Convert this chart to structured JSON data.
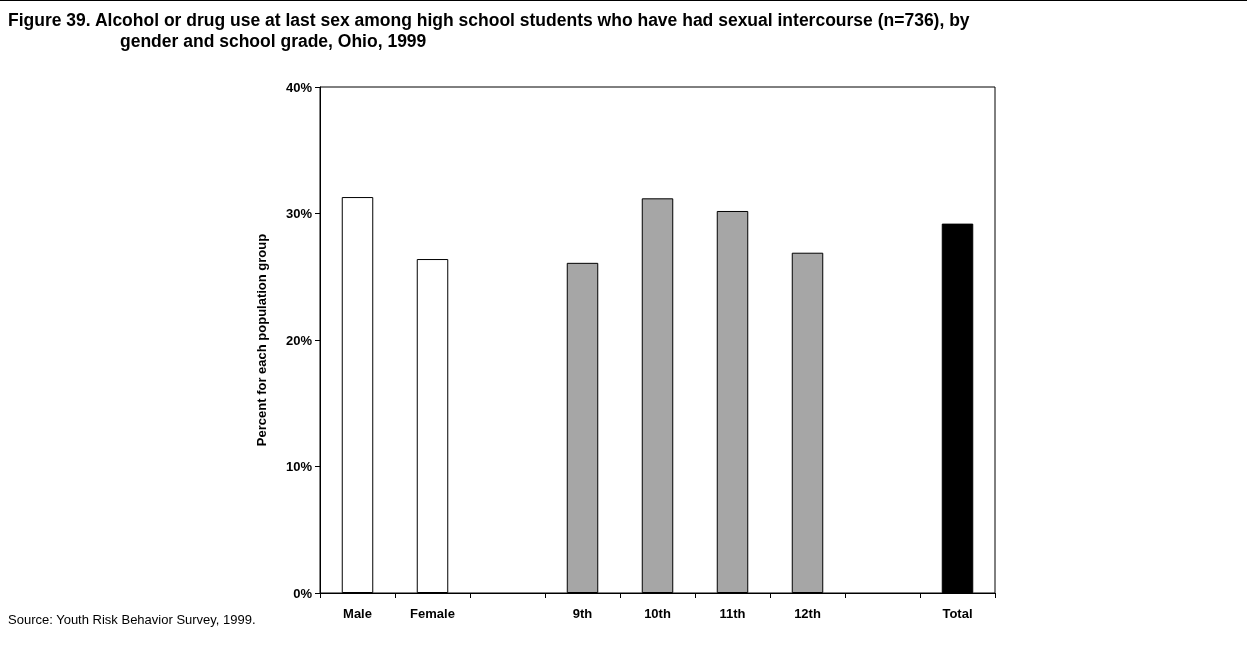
{
  "chart_data": {
    "type": "bar",
    "title": "Figure 39.  Alcohol or drug use at last sex among high school students who have had sexual intercourse (n=736), by gender and school grade, Ohio, 1999",
    "ylabel": "Percent for each population group",
    "categories": [
      "Male",
      "Female",
      null,
      "9th",
      "10th",
      "11th",
      "12th",
      null,
      "Total"
    ],
    "values": [
      31.3,
      26.4,
      null,
      26.1,
      31.2,
      30.2,
      26.9,
      null,
      29.2
    ],
    "colors": [
      "#ffffff",
      "#ffffff",
      null,
      "#a6a6a6",
      "#a6a6a6",
      "#a6a6a6",
      "#a6a6a6",
      null,
      "#000000"
    ],
    "ylim": [
      0,
      40
    ],
    "yticks": [
      {
        "value": 0,
        "label": "0%"
      },
      {
        "value": 10,
        "label": "10%"
      },
      {
        "value": 20,
        "label": "20%"
      },
      {
        "value": 30,
        "label": "30%"
      },
      {
        "value": 40,
        "label": "40%"
      }
    ],
    "grid": false,
    "annotations": [
      "Source:  Youth Risk Behavior Survey, 1999."
    ]
  }
}
